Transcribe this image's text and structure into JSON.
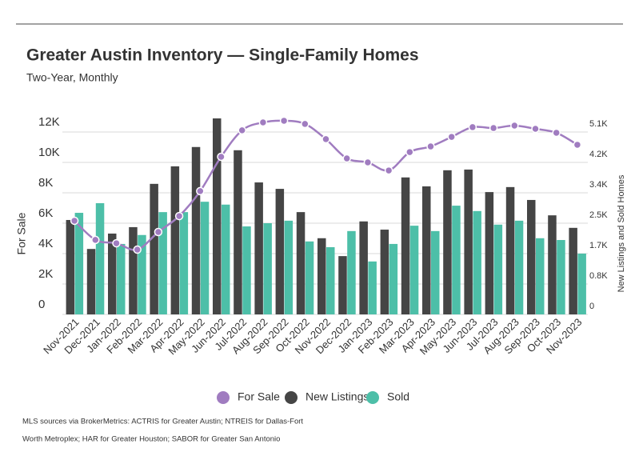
{
  "chart_data": {
    "type": "bar",
    "title": "Greater Austin Inventory — Single-Family Homes",
    "subtitle": "Two-Year, Monthly",
    "y_label": "For Sale",
    "y2_label": "New Listings and Sold Homes",
    "categories": [
      "Nov-2021",
      "Dec-2021",
      "Jan-2022",
      "Feb-2022",
      "Mar-2022",
      "Apr-2022",
      "May-2022",
      "Jun-2022",
      "Jul-2022",
      "Aug-2022",
      "Sep-2022",
      "Oct-2022",
      "Nov-2022",
      "Dec-2022",
      "Jan-2023",
      "Feb-2023",
      "Mar-2023",
      "Apr-2023",
      "May-2023",
      "Jun-2023",
      "Jul-2023",
      "Aug-2023",
      "Sep-2023",
      "Oct-2023",
      "Nov-2023"
    ],
    "series": [
      {
        "name": "For Sale",
        "type": "line",
        "axis": "y",
        "color": "#a07cc0",
        "values": [
          6160,
          4900,
          4680,
          4260,
          5420,
          6470,
          8110,
          10370,
          12110,
          12630,
          12740,
          12530,
          11530,
          10260,
          10000,
          9470,
          10680,
          11050,
          11680,
          12320,
          12260,
          12420,
          12210,
          11950,
          11160
        ]
      },
      {
        "name": "New Listings",
        "type": "bar",
        "axis": "y2",
        "color": "#454545",
        "values": [
          2640,
          1830,
          2260,
          2440,
          3650,
          4140,
          4680,
          5480,
          4590,
          3690,
          3510,
          2860,
          2130,
          1630,
          2600,
          2370,
          3830,
          3580,
          4030,
          4050,
          3420,
          3560,
          3200,
          2770,
          2420
        ]
      },
      {
        "name": "Sold",
        "type": "bar",
        "axis": "y2",
        "color": "#4dbfa8",
        "values": [
          2840,
          3110,
          1970,
          2220,
          2860,
          2860,
          3150,
          3070,
          2460,
          2550,
          2620,
          2040,
          1880,
          2330,
          1480,
          1970,
          2480,
          2330,
          3040,
          2890,
          2510,
          2620,
          2130,
          2080,
          1700
        ]
      }
    ],
    "ylim": [
      0,
      13000
    ],
    "yticks": [
      0,
      {
        "value": 2000,
        "label": "2K"
      },
      {
        "value": 4000,
        "label": "4K"
      },
      {
        "value": 6000,
        "label": "6K"
      },
      {
        "value": 8000,
        "label": "8K"
      },
      {
        "value": 10000,
        "label": "10K"
      },
      {
        "value": 12000,
        "label": "12K"
      }
    ],
    "y2lim": [
      0,
      5525
    ],
    "y2ticks": [
      0,
      {
        "value": 850,
        "label": "0.8K"
      },
      {
        "value": 1700,
        "label": "1.7K"
      },
      {
        "value": 2550,
        "label": "2.5K"
      },
      {
        "value": 3400,
        "label": "3.4K"
      },
      {
        "value": 4250,
        "label": "4.2K"
      },
      {
        "value": 5100,
        "label": "5.1K"
      }
    ],
    "grid": true,
    "legend": "bottom",
    "source": [
      "MLS sources via BrokerMetrics: ACTRIS for Greater Austin; NTREIS for Dallas-Fort",
      "Worth Metroplex; HAR for Greater Houston; SABOR for Greater San Antonio"
    ]
  }
}
